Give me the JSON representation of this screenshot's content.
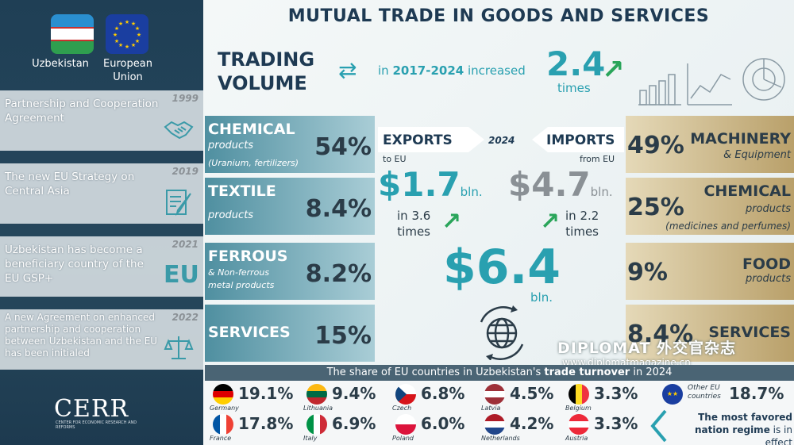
{
  "title": "MUTUAL TRADE IN GOODS AND SERVICES",
  "left_panel": {
    "countries": [
      {
        "name": "Uzbekistan"
      },
      {
        "name": "European Union"
      }
    ],
    "events": [
      {
        "year": "1999",
        "text": "Partnership and Cooperation Agreement",
        "icon": "handshake-icon"
      },
      {
        "year": "2019",
        "text": "The new EU Strategy on Central Asia",
        "icon": "document-pen-icon"
      },
      {
        "year": "2021",
        "text": "Uzbekistan has become a beneficiary country of the EU GSP+",
        "icon": "eu-letters-icon",
        "icon_text": "EU"
      },
      {
        "year": "2022",
        "text": "A new Agreement on enhanced partnership and cooperation between Uzbekistan and the EU has been initialed",
        "icon": "scales-icon"
      }
    ],
    "logo": "CERR",
    "logo_sub": "CENTER FOR ECONOMIC RESEARCH AND REFORMS"
  },
  "trading_volume": {
    "label": "TRADING VOLUME",
    "period_text_pre": "in",
    "period": "2017-2024",
    "period_text_post": "increased",
    "multiplier": "2.4",
    "unit": "times"
  },
  "exports": {
    "label": "EXPORTS",
    "sub": "to EU",
    "year": "2024",
    "value": "$1.7",
    "unit": "bln.",
    "growth": "in 3.6",
    "growth_unit": "times",
    "categories": [
      {
        "name": "CHEMICAL",
        "sub": "products",
        "sub2": "(Uranium, fertilizers)",
        "pct": "54%"
      },
      {
        "name": "TEXTILE",
        "sub": "products",
        "sub2": "",
        "pct": "8.4%"
      },
      {
        "name": "FERROUS",
        "sub": "& Non-ferrous",
        "sub2": "metal products",
        "pct": "8.2%"
      },
      {
        "name": "SERVICES",
        "sub": "",
        "sub2": "",
        "pct": "15%"
      }
    ]
  },
  "imports": {
    "label": "IMPORTS",
    "sub": "from EU",
    "value": "$4.7",
    "unit": "bln.",
    "growth": "in 2.2",
    "growth_unit": "times",
    "categories": [
      {
        "name": "MACHINERY",
        "sub": "& Equipment",
        "sub2": "",
        "pct": "49%"
      },
      {
        "name": "CHEMICAL",
        "sub": "products",
        "sub2": "(medicines and perfumes)",
        "pct": "25%"
      },
      {
        "name": "FOOD",
        "sub": "products",
        "sub2": "",
        "pct": "9%"
      },
      {
        "name": "SERVICES",
        "sub": "",
        "sub2": "",
        "pct": "8.4%"
      }
    ]
  },
  "total": {
    "value": "$6.4",
    "unit": "bln."
  },
  "watermark": {
    "line1": "DIPLOMAT 外交官杂志",
    "line2": "www.diplomatmagazine.cn"
  },
  "share": {
    "title_pre": "The share of EU countries in Uzbekistan's",
    "title_bold": "trade turnover",
    "title_post": "in 2024",
    "countries": [
      {
        "name": "Germany",
        "value": "19.1%",
        "colors": [
          "#000000",
          "#dd0000",
          "#ffce00"
        ],
        "dir": "h"
      },
      {
        "name": "Lithuania",
        "value": "9.4%",
        "colors": [
          "#fdb913",
          "#006a44",
          "#c1272d"
        ],
        "dir": "h"
      },
      {
        "name": "Czech",
        "value": "6.8%",
        "colors": [
          "#ffffff",
          "#d7141a",
          "#11457e"
        ],
        "dir": "czech"
      },
      {
        "name": "Latvia",
        "value": "4.5%",
        "colors": [
          "#9e3039",
          "#ffffff",
          "#9e3039"
        ],
        "dir": "h"
      },
      {
        "name": "Belgium",
        "value": "3.3%",
        "colors": [
          "#000000",
          "#fdda24",
          "#ef3340"
        ],
        "dir": "v"
      },
      {
        "name": "Other EU countries",
        "value": "18.7%",
        "colors": [
          "#1a3ea0",
          "#ffcc00",
          "#1a3ea0"
        ],
        "dir": "eu"
      },
      {
        "name": "France",
        "value": "17.8%",
        "colors": [
          "#0055a4",
          "#ffffff",
          "#ef4135"
        ],
        "dir": "v"
      },
      {
        "name": "Italy",
        "value": "6.9%",
        "colors": [
          "#009246",
          "#ffffff",
          "#ce2b37"
        ],
        "dir": "v"
      },
      {
        "name": "Poland",
        "value": "6.0%",
        "colors": [
          "#ffffff",
          "#dc143c",
          "#dc143c"
        ],
        "dir": "h2"
      },
      {
        "name": "Netherlands",
        "value": "4.2%",
        "colors": [
          "#ae1c28",
          "#ffffff",
          "#21468b"
        ],
        "dir": "h"
      },
      {
        "name": "Austria",
        "value": "3.3%",
        "colors": [
          "#ed2939",
          "#ffffff",
          "#ed2939"
        ],
        "dir": "h"
      }
    ],
    "favored_bold": "The most favored nation regime",
    "favored_post": "is in effect"
  },
  "colors": {
    "teal": "#29a0b0",
    "navy": "#1e3a53",
    "green_arrow": "#2aa55a"
  }
}
